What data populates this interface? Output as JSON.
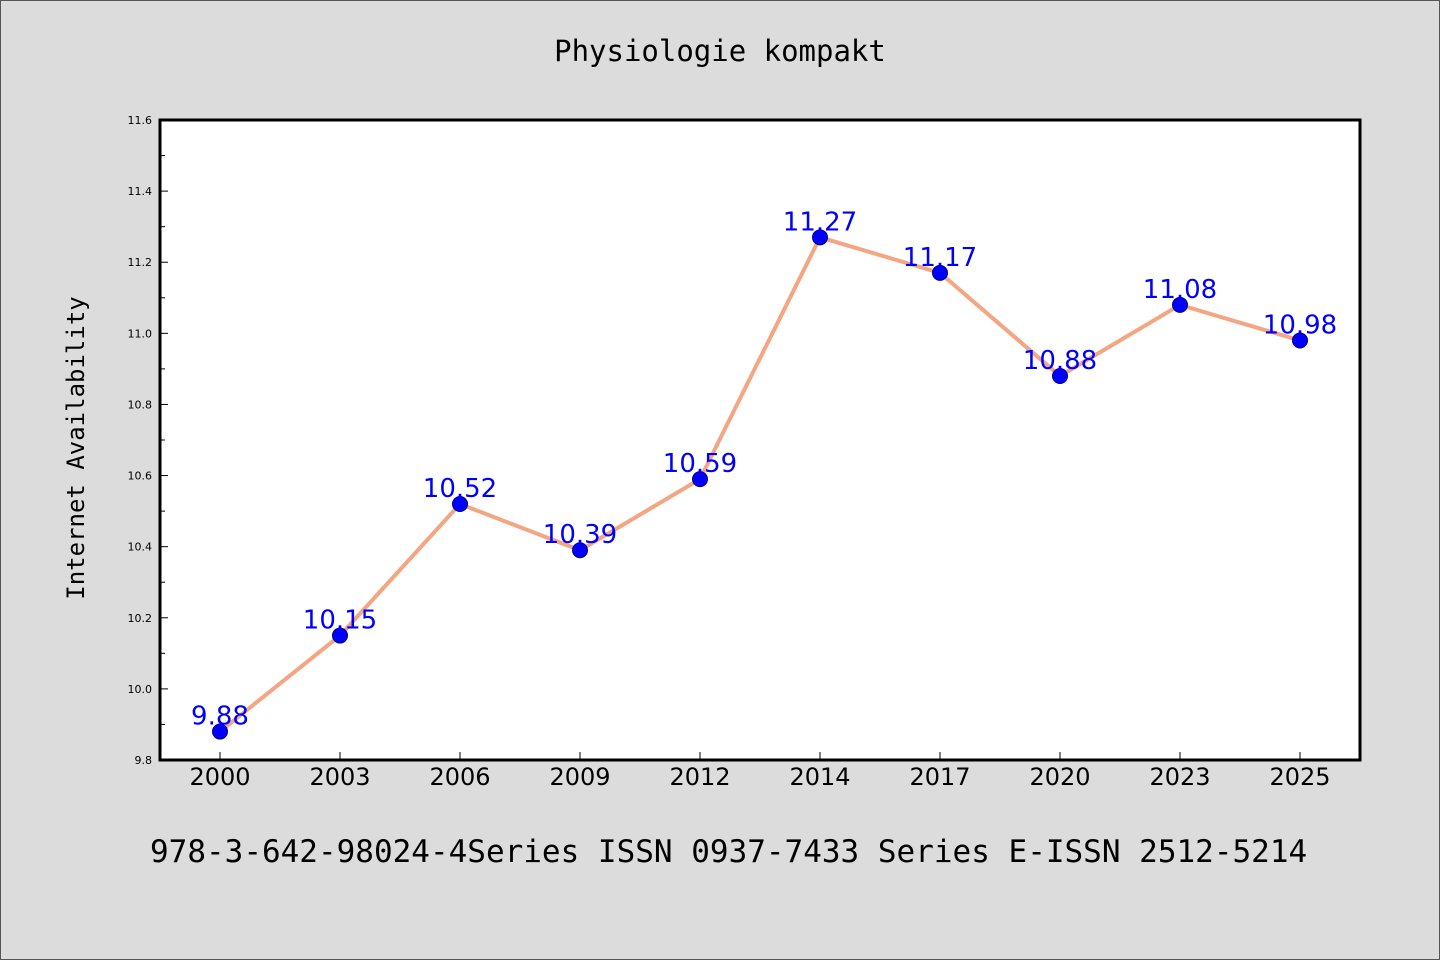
{
  "footer_text": "978-3-642-98024-4Series ISSN 0937-7433 Series E-ISSN 2512-5214",
  "colors": {
    "background": "#dcdcdc",
    "plot_bg": "#ffffff",
    "line": "#f4a582",
    "marker": "#0000ff",
    "data_label": "#0000ff"
  },
  "chart_data": {
    "type": "line",
    "title": "Physiologie kompakt",
    "xlabel": "",
    "ylabel": "Internet Availability",
    "categories": [
      "2000",
      "2003",
      "2006",
      "2009",
      "2012",
      "2014",
      "2017",
      "2020",
      "2023",
      "2025"
    ],
    "series": [
      {
        "values": [
          9.88,
          10.15,
          10.52,
          10.39,
          10.59,
          11.27,
          11.17,
          10.88,
          11.08,
          10.98
        ]
      }
    ],
    "ylim": [
      9.8,
      11.6
    ],
    "yticks": [
      "9.8",
      "10.0",
      "10.2",
      "10.4",
      "10.6",
      "10.8",
      "11.0",
      "11.2",
      "11.4",
      "11.6"
    ],
    "data_labels": [
      "9.88",
      "10.15",
      "10.52",
      "10.39",
      "10.59",
      "11.27",
      "11.17",
      "10.88",
      "11.08",
      "10.98"
    ],
    "grid": false,
    "legend": "none"
  }
}
